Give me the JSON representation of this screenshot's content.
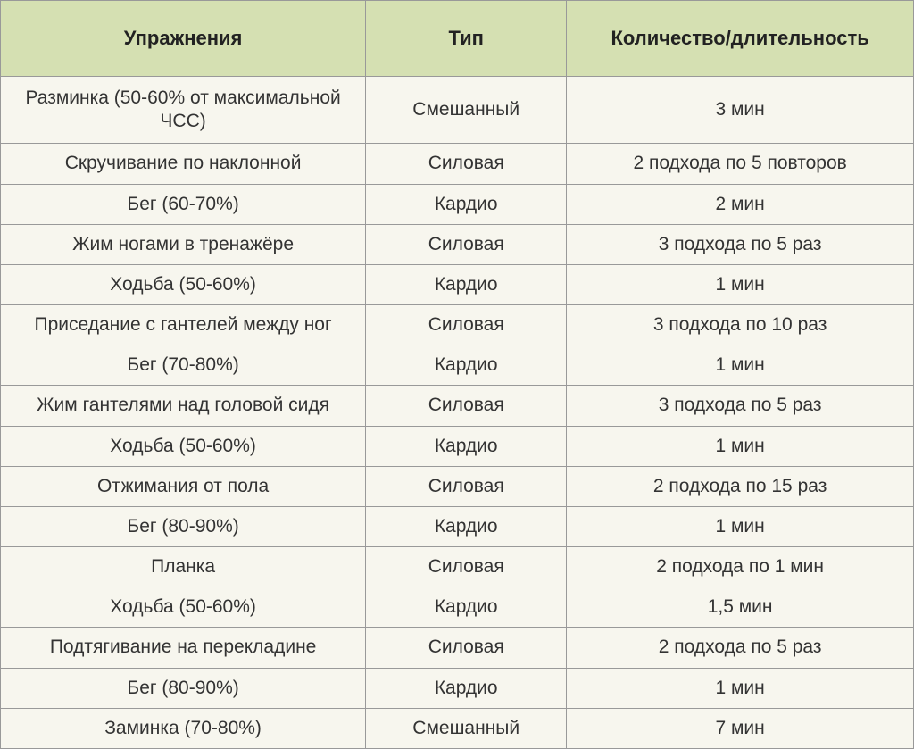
{
  "table": {
    "type": "table",
    "header_background": "#d5e0b2",
    "body_background": "#f7f6ee",
    "border_color": "#999999",
    "text_color": "#333333",
    "font_family": "Verdana",
    "header_fontsize": 22,
    "body_fontsize": 21,
    "column_widths_percent": [
      40,
      22,
      38
    ],
    "columns": [
      "Упражнения",
      "Тип",
      "Количество/длительность"
    ],
    "rows": [
      [
        "Разминка (50-60% от максимальной ЧСС)",
        "Смешанный",
        "3 мин"
      ],
      [
        "Скручивание по наклонной",
        "Силовая",
        "2 подхода по 5 повторов"
      ],
      [
        "Бег (60-70%)",
        "Кардио",
        "2 мин"
      ],
      [
        "Жим ногами в тренажёре",
        "Силовая",
        "3 подхода по 5 раз"
      ],
      [
        "Ходьба (50-60%)",
        "Кардио",
        "1 мин"
      ],
      [
        "Приседание с гантелей между ног",
        "Силовая",
        "3 подхода по 10 раз"
      ],
      [
        "Бег (70-80%)",
        "Кардио",
        "1 мин"
      ],
      [
        "Жим гантелями над головой сидя",
        "Силовая",
        "3 подхода по 5 раз"
      ],
      [
        "Ходьба (50-60%)",
        "Кардио",
        "1 мин"
      ],
      [
        "Отжимания от пола",
        "Силовая",
        "2 подхода по 15 раз"
      ],
      [
        "Бег (80-90%)",
        "Кардио",
        "1 мин"
      ],
      [
        "Планка",
        "Силовая",
        "2 подхода по 1 мин"
      ],
      [
        "Ходьба (50-60%)",
        "Кардио",
        "1,5 мин"
      ],
      [
        "Подтягивание на перекладине",
        "Силовая",
        "2 подхода по 5 раз"
      ],
      [
        "Бег (80-90%)",
        "Кардио",
        "1 мин"
      ],
      [
        "Заминка (70-80%)",
        "Смешанный",
        "7 мин"
      ]
    ]
  }
}
